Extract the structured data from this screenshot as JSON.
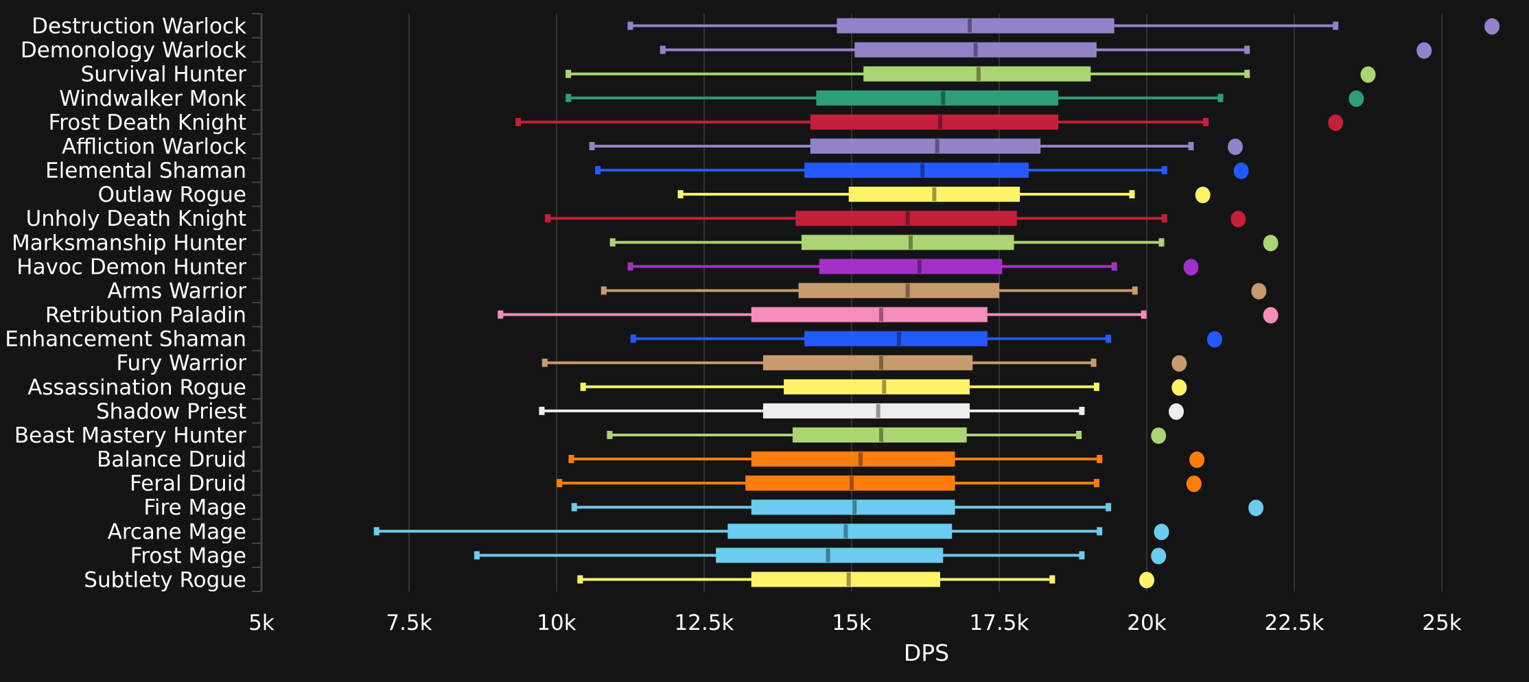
{
  "chart_data": {
    "type": "box",
    "title": "",
    "xlabel": "DPS",
    "ylabel": "",
    "xlim": [
      5000,
      25000
    ],
    "xticks": [
      5000,
      7500,
      10000,
      12500,
      15000,
      17500,
      20000,
      22500,
      25000
    ],
    "xtick_labels": [
      "5k",
      "7.5k",
      "10k",
      "12.5k",
      "15k",
      "17.5k",
      "20k",
      "22.5k",
      "25k"
    ],
    "grid": true,
    "series": [
      {
        "name": "Destruction Warlock",
        "color": "#9482C9",
        "min": 11250,
        "q1": 14750,
        "median": 17000,
        "q3": 19450,
        "max": 23200,
        "outlier": 25850
      },
      {
        "name": "Demonology Warlock",
        "color": "#9482C9",
        "min": 11800,
        "q1": 15050,
        "median": 17100,
        "q3": 19150,
        "max": 21700,
        "outlier": 24700
      },
      {
        "name": "Survival Hunter",
        "color": "#ABD473",
        "min": 10200,
        "q1": 15200,
        "median": 17150,
        "q3": 19050,
        "max": 21700,
        "outlier": 23750
      },
      {
        "name": "Windwalker Monk",
        "color": "#2E9E78",
        "min": 10200,
        "q1": 14400,
        "median": 16550,
        "q3": 18500,
        "max": 21250,
        "outlier": 23550
      },
      {
        "name": "Frost Death Knight",
        "color": "#C41F3B",
        "min": 9350,
        "q1": 14300,
        "median": 16500,
        "q3": 18500,
        "max": 21000,
        "outlier": 23200
      },
      {
        "name": "Affliction Warlock",
        "color": "#9482C9",
        "min": 10600,
        "q1": 14300,
        "median": 16450,
        "q3": 18200,
        "max": 20750,
        "outlier": 21500
      },
      {
        "name": "Elemental Shaman",
        "color": "#2459FF",
        "min": 10700,
        "q1": 14200,
        "median": 16200,
        "q3": 18000,
        "max": 20300,
        "outlier": 21600
      },
      {
        "name": "Outlaw Rogue",
        "color": "#FFF468",
        "min": 12100,
        "q1": 14950,
        "median": 16400,
        "q3": 17850,
        "max": 19750,
        "outlier": 20950
      },
      {
        "name": "Unholy Death Knight",
        "color": "#C41F3B",
        "min": 9850,
        "q1": 14050,
        "median": 15950,
        "q3": 17800,
        "max": 20300,
        "outlier": 21550
      },
      {
        "name": "Marksmanship Hunter",
        "color": "#ABD473",
        "min": 10950,
        "q1": 14150,
        "median": 16000,
        "q3": 17750,
        "max": 20250,
        "outlier": 22100
      },
      {
        "name": "Havoc Demon Hunter",
        "color": "#A330C9",
        "min": 11250,
        "q1": 14450,
        "median": 16150,
        "q3": 17550,
        "max": 19450,
        "outlier": 20750
      },
      {
        "name": "Arms Warrior",
        "color": "#C69B6D",
        "min": 10800,
        "q1": 14100,
        "median": 15950,
        "q3": 17500,
        "max": 19800,
        "outlier": 21900
      },
      {
        "name": "Retribution Paladin",
        "color": "#F58CBA",
        "min": 9050,
        "q1": 13300,
        "median": 15500,
        "q3": 17300,
        "max": 19950,
        "outlier": 22100
      },
      {
        "name": "Enhancement Shaman",
        "color": "#2459FF",
        "min": 11300,
        "q1": 14200,
        "median": 15800,
        "q3": 17300,
        "max": 19350,
        "outlier": 21150
      },
      {
        "name": "Fury Warrior",
        "color": "#C69B6D",
        "min": 9800,
        "q1": 13500,
        "median": 15500,
        "q3": 17050,
        "max": 19100,
        "outlier": 20550
      },
      {
        "name": "Assassination Rogue",
        "color": "#FFF468",
        "min": 10450,
        "q1": 13850,
        "median": 15550,
        "q3": 17000,
        "max": 19150,
        "outlier": 20550
      },
      {
        "name": "Shadow Priest",
        "color": "#EEEEEE",
        "min": 9750,
        "q1": 13500,
        "median": 15450,
        "q3": 17000,
        "max": 18900,
        "outlier": 20500
      },
      {
        "name": "Beast Mastery Hunter",
        "color": "#ABD473",
        "min": 10900,
        "q1": 14000,
        "median": 15500,
        "q3": 16950,
        "max": 18850,
        "outlier": 20200
      },
      {
        "name": "Balance Druid",
        "color": "#FF7D0A",
        "min": 10250,
        "q1": 13300,
        "median": 15150,
        "q3": 16750,
        "max": 19200,
        "outlier": 20850
      },
      {
        "name": "Feral Druid",
        "color": "#FF7D0A",
        "min": 10050,
        "q1": 13200,
        "median": 15000,
        "q3": 16750,
        "max": 19150,
        "outlier": 20800
      },
      {
        "name": "Fire Mage",
        "color": "#69CCF0",
        "min": 10300,
        "q1": 13300,
        "median": 15050,
        "q3": 16750,
        "max": 19350,
        "outlier": 21850
      },
      {
        "name": "Arcane Mage",
        "color": "#69CCF0",
        "min": 6950,
        "q1": 12900,
        "median": 14900,
        "q3": 16700,
        "max": 19200,
        "outlier": 20250
      },
      {
        "name": "Frost Mage",
        "color": "#69CCF0",
        "min": 8650,
        "q1": 12700,
        "median": 14600,
        "q3": 16550,
        "max": 18900,
        "outlier": 20200
      },
      {
        "name": "Subtlety Rogue",
        "color": "#FFF468",
        "min": 10400,
        "q1": 13300,
        "median": 14950,
        "q3": 16500,
        "max": 18400,
        "outlier": 20000
      }
    ]
  }
}
